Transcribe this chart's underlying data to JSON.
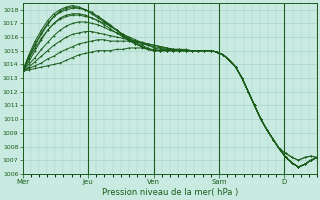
{
  "title": "Pression niveau de la mer( hPa )",
  "bg_color": "#c8eae0",
  "grid_color": "#a8d4c8",
  "line_color": "#1a5c1a",
  "x_ticks_pos": [
    0,
    48,
    96,
    144,
    192
  ],
  "x_labels": [
    "Mer",
    "Jeu",
    "Ven",
    "Sam",
    "D"
  ],
  "ylim": [
    1006,
    1018.5
  ],
  "yticks": [
    1006,
    1007,
    1008,
    1009,
    1010,
    1011,
    1012,
    1013,
    1014,
    1015,
    1016,
    1017,
    1018
  ],
  "total_hours": 216,
  "series": [
    [
      1013.5,
      1013.6,
      1013.7,
      1013.8,
      1013.9,
      1014.0,
      1014.1,
      1014.3,
      1014.5,
      1014.7,
      1014.8,
      1014.9,
      1015.0,
      1015.0,
      1015.0,
      1015.1,
      1015.1,
      1015.2,
      1015.2,
      1015.2,
      1015.1,
      1015.1,
      1015.0,
      1015.0,
      1015.0,
      1015.0,
      1015.0,
      1015.0,
      1015.0,
      1015.0,
      1015.0,
      1014.9,
      1014.7,
      1014.3,
      1013.8,
      1013.0,
      1012.0,
      1011.0,
      1010.0,
      1009.2,
      1008.5,
      1007.8,
      1007.2,
      1006.8,
      1006.5,
      1006.7,
      1007.0,
      1007.2
    ],
    [
      1013.5,
      1013.7,
      1013.9,
      1014.1,
      1014.4,
      1014.6,
      1014.9,
      1015.1,
      1015.3,
      1015.5,
      1015.6,
      1015.7,
      1015.8,
      1015.8,
      1015.7,
      1015.7,
      1015.7,
      1015.7,
      1015.6,
      1015.6,
      1015.5,
      1015.4,
      1015.3,
      1015.2,
      1015.1,
      1015.0,
      1015.0,
      1015.0,
      1015.0,
      1015.0,
      1015.0,
      1014.9,
      1014.7,
      1014.3,
      1013.8,
      1013.0,
      1012.0,
      1011.0,
      1010.0,
      1009.2,
      1008.5,
      1007.8,
      1007.2,
      1006.8,
      1006.5,
      1006.7,
      1007.0,
      1007.2
    ],
    [
      1013.5,
      1013.8,
      1014.2,
      1014.6,
      1015.0,
      1015.4,
      1015.7,
      1016.0,
      1016.2,
      1016.3,
      1016.4,
      1016.4,
      1016.3,
      1016.2,
      1016.1,
      1016.0,
      1015.9,
      1015.8,
      1015.7,
      1015.6,
      1015.5,
      1015.4,
      1015.3,
      1015.2,
      1015.1,
      1015.0,
      1015.0,
      1015.0,
      1015.0,
      1015.0,
      1015.0,
      1014.9,
      1014.7,
      1014.3,
      1013.8,
      1013.0,
      1012.0,
      1011.0,
      1010.0,
      1009.2,
      1008.5,
      1007.8,
      1007.2,
      1006.8,
      1006.5,
      1006.7,
      1007.0,
      1007.2
    ],
    [
      1013.5,
      1014.0,
      1014.5,
      1015.1,
      1015.6,
      1016.1,
      1016.5,
      1016.8,
      1017.0,
      1017.1,
      1017.1,
      1017.0,
      1016.9,
      1016.7,
      1016.5,
      1016.3,
      1016.1,
      1015.9,
      1015.7,
      1015.5,
      1015.4,
      1015.3,
      1015.2,
      1015.1,
      1015.0,
      1015.0,
      1015.0,
      1015.0,
      1015.0,
      1015.0,
      1015.0,
      1014.9,
      1014.7,
      1014.3,
      1013.8,
      1013.0,
      1012.0,
      1011.0,
      1010.0,
      1009.2,
      1008.5,
      1007.8,
      1007.2,
      1006.8,
      1006.5,
      1006.7,
      1007.0,
      1007.2
    ],
    [
      1013.5,
      1014.2,
      1015.0,
      1015.8,
      1016.5,
      1017.0,
      1017.4,
      1017.6,
      1017.7,
      1017.7,
      1017.6,
      1017.4,
      1017.2,
      1016.9,
      1016.6,
      1016.3,
      1016.0,
      1015.7,
      1015.5,
      1015.3,
      1015.1,
      1015.0,
      1015.0,
      1015.0,
      1015.0,
      1015.0,
      1015.0,
      1015.0,
      1015.0,
      1015.0,
      1015.0,
      1014.9,
      1014.7,
      1014.3,
      1013.8,
      1013.0,
      1012.0,
      1011.0,
      1010.0,
      1009.2,
      1008.5,
      1007.8,
      1007.2,
      1006.8,
      1006.5,
      1006.7,
      1007.0,
      1007.2
    ],
    [
      1013.5,
      1014.5,
      1015.4,
      1016.2,
      1016.9,
      1017.5,
      1017.9,
      1018.1,
      1018.2,
      1018.1,
      1018.0,
      1017.8,
      1017.5,
      1017.2,
      1016.8,
      1016.5,
      1016.1,
      1015.8,
      1015.5,
      1015.3,
      1015.1,
      1015.0,
      1015.0,
      1015.0,
      1015.0,
      1015.0,
      1015.0,
      1015.0,
      1015.0,
      1015.0,
      1015.0,
      1014.9,
      1014.7,
      1014.3,
      1013.8,
      1013.0,
      1012.0,
      1011.0,
      1010.0,
      1009.2,
      1008.5,
      1007.8,
      1007.2,
      1006.8,
      1006.5,
      1006.7,
      1007.0,
      1007.2
    ],
    [
      1013.5,
      1014.7,
      1015.7,
      1016.5,
      1017.2,
      1017.7,
      1018.0,
      1018.2,
      1018.3,
      1018.2,
      1018.0,
      1017.7,
      1017.4,
      1017.1,
      1016.8,
      1016.5,
      1016.1,
      1015.8,
      1015.5,
      1015.3,
      1015.1,
      1015.0,
      1015.0,
      1015.0,
      1015.0,
      1015.0,
      1015.0,
      1015.0,
      1015.0,
      1015.0,
      1015.0,
      1014.9,
      1014.7,
      1014.3,
      1013.8,
      1013.0,
      1012.0,
      1011.0,
      1010.0,
      1009.2,
      1008.5,
      1007.8,
      1007.2,
      1006.8,
      1006.5,
      1006.7,
      1007.0,
      1007.2
    ],
    [
      1013.5,
      1014.6,
      1015.5,
      1016.3,
      1017.0,
      1017.5,
      1017.8,
      1018.0,
      1018.1,
      1018.1,
      1018.0,
      1017.8,
      1017.5,
      1017.2,
      1016.9,
      1016.5,
      1016.2,
      1015.9,
      1015.6,
      1015.4,
      1015.2,
      1015.0,
      1015.0,
      1015.1,
      1015.1,
      1015.1,
      1015.0,
      1015.0,
      1015.0,
      1015.0,
      1015.0,
      1014.9,
      1014.7,
      1014.3,
      1013.8,
      1013.0,
      1012.0,
      1011.0,
      1010.0,
      1009.2,
      1008.5,
      1007.8,
      1007.5,
      1007.2,
      1007.0,
      1007.2,
      1007.3,
      1007.2
    ],
    [
      1013.5,
      1014.4,
      1015.2,
      1015.9,
      1016.5,
      1017.0,
      1017.3,
      1017.5,
      1017.6,
      1017.6,
      1017.5,
      1017.4,
      1017.2,
      1017.0,
      1016.8,
      1016.5,
      1016.2,
      1016.0,
      1015.8,
      1015.6,
      1015.4,
      1015.2,
      1015.1,
      1015.1,
      1015.1,
      1015.1,
      1015.1,
      1015.0,
      1015.0,
      1015.0,
      1015.0,
      1014.9,
      1014.7,
      1014.3,
      1013.8,
      1013.0,
      1012.0,
      1011.0,
      1010.0,
      1009.2,
      1008.5,
      1007.8,
      1007.5,
      1007.2,
      1007.0,
      1007.2,
      1007.3,
      1007.2
    ]
  ]
}
